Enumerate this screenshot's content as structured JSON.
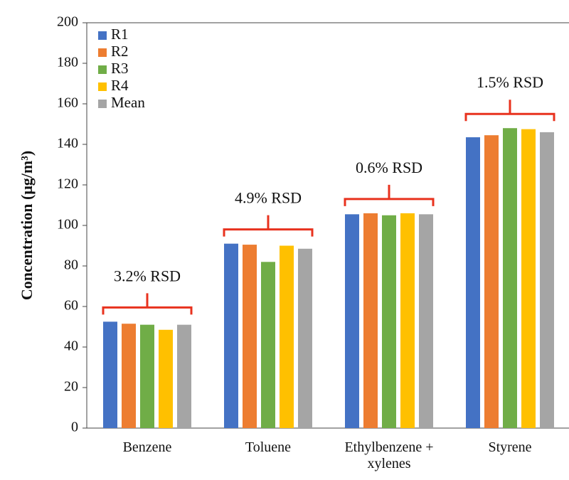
{
  "chart_data": {
    "type": "bar",
    "y_label": "Concentration (μg/m³)",
    "categories": [
      "Benzene",
      "Toluene",
      "Ethylbenzene + xylenes",
      "Styrene"
    ],
    "series": [
      {
        "name": "R1",
        "color": "#4472c4",
        "values": [
          52.5,
          91,
          105.5,
          143.5
        ]
      },
      {
        "name": "R2",
        "color": "#ed7d31",
        "values": [
          51.5,
          90.5,
          106,
          144.5
        ]
      },
      {
        "name": "R3",
        "color": "#70ad47",
        "values": [
          51,
          82,
          105,
          148
        ]
      },
      {
        "name": "R4",
        "color": "#ffc000",
        "values": [
          48.5,
          90,
          106,
          147.5
        ]
      },
      {
        "name": "Mean",
        "color": "#a5a5a5",
        "values": [
          51,
          88.5,
          105.5,
          146
        ]
      }
    ],
    "annotations": [
      "3.2% RSD",
      "4.9% RSD",
      "0.6% RSD",
      "1.5% RSD"
    ],
    "annotation_color": "#e8321e",
    "ylim": [
      0,
      200
    ],
    "yticks": [
      0,
      20,
      40,
      60,
      80,
      100,
      120,
      140,
      160,
      180,
      200
    ],
    "legend": "top-left"
  }
}
